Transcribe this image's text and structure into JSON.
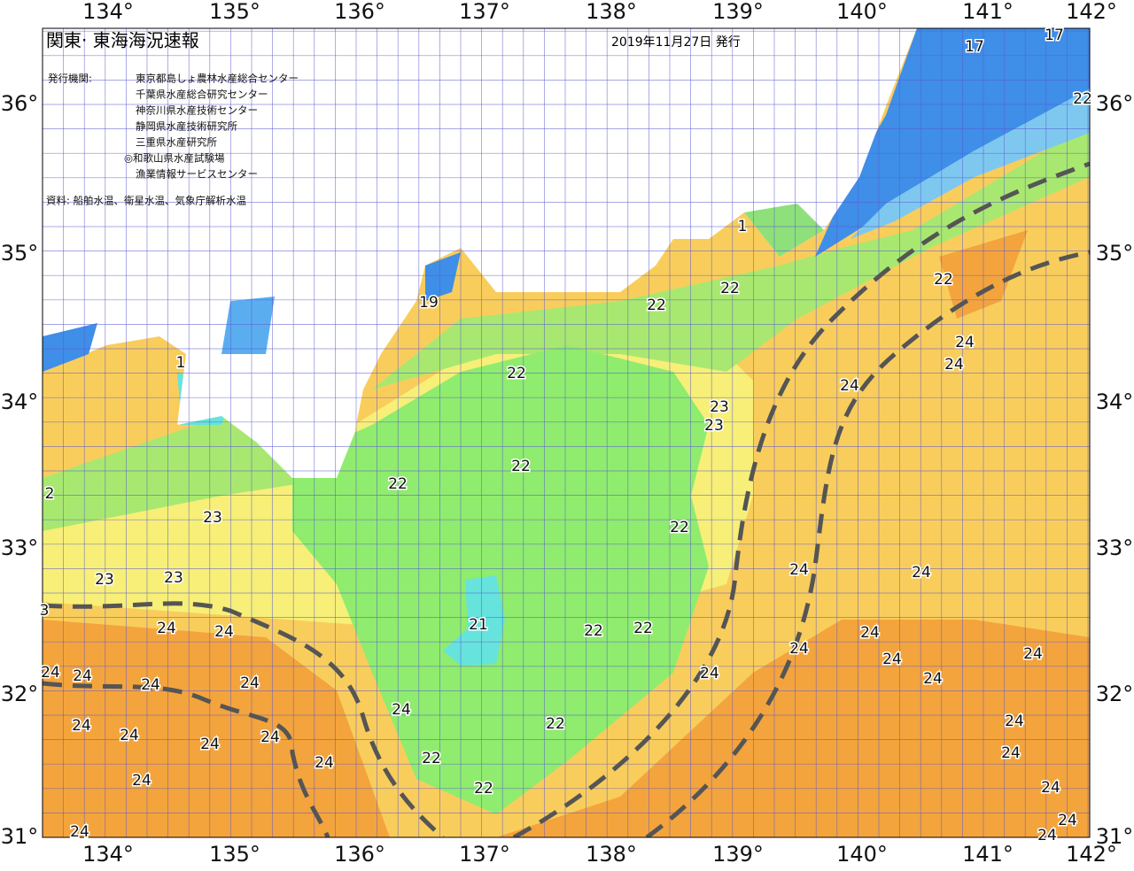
{
  "header": {
    "title": "関東· 東海海況速報",
    "date": "2019年11月27日 発行"
  },
  "issuers": {
    "label": "発行機関:",
    "items": [
      "東京都島しょ農林水産総合センター",
      "千葉県水産総合研究センター",
      "神奈川県水産技術センター",
      "静岡県水産技術研究所",
      "三重県水産研究所",
      "◎和歌山県水産試験場",
      "漁業情報サービスセンター"
    ]
  },
  "source": "資料: 船舶水温、衛星水温、気象庁解析水温",
  "axes": {
    "longitude": [
      "134°",
      "135°",
      "136°",
      "137°",
      "138°",
      "139°",
      "140°",
      "141°",
      "142°"
    ],
    "latitude": [
      "36°",
      "35°",
      "34°",
      "33°",
      "32°",
      "31°"
    ]
  },
  "contour_labels": [
    "17",
    "17",
    "22",
    "1",
    "22",
    "19",
    "22",
    "1",
    "22",
    "23",
    "23",
    "22",
    "22",
    "2",
    "23",
    "22",
    "23",
    "23",
    "3",
    "21",
    "22",
    "22",
    "24",
    "24",
    "24",
    "24",
    "24",
    "24",
    "22",
    "24",
    "22",
    "24",
    "24",
    "24",
    "24",
    "24",
    "22",
    "24",
    "22",
    "24",
    "24",
    "24",
    "24",
    "24",
    "24",
    "24",
    "24",
    "24",
    "24",
    "24",
    "24",
    "24",
    "24",
    "24",
    "24",
    "24"
  ]
}
